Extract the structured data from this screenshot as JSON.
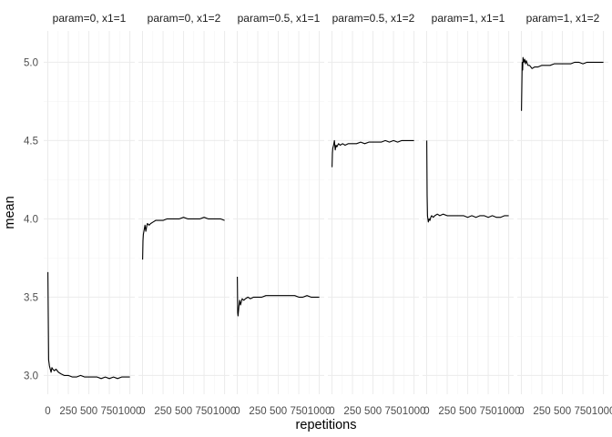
{
  "chart_data": {
    "type": "line",
    "xlabel": "repetitions",
    "ylabel": "mean",
    "ylim": [
      2.88,
      5.2
    ],
    "xlim": [
      -50,
      1060
    ],
    "yticks": [
      3.0,
      3.5,
      4.0,
      4.5,
      5.0
    ],
    "ytick_labels": [
      "3.0",
      "3.5",
      "4.0",
      "4.5",
      "5.0"
    ],
    "xticks": [
      0,
      250,
      500,
      750,
      1000
    ],
    "xtick_labels": [
      "0",
      "250",
      "500",
      "750",
      "1000"
    ],
    "grid": true,
    "colors": {
      "line": "#000000",
      "grid": "#ebebeb",
      "background": "#ffffff"
    },
    "facets": [
      {
        "title": "param=0, x1=1",
        "x": [
          1,
          10,
          20,
          30,
          40,
          50,
          60,
          80,
          100,
          130,
          160,
          200,
          250,
          300,
          350,
          400,
          450,
          500,
          550,
          600,
          650,
          700,
          750,
          800,
          850,
          900,
          950,
          1000
        ],
        "y": [
          3.66,
          3.1,
          3.06,
          3.04,
          3.02,
          3.05,
          3.04,
          3.03,
          3.04,
          3.02,
          3.01,
          3.0,
          3.0,
          2.99,
          2.99,
          3.0,
          2.99,
          2.99,
          2.99,
          2.99,
          2.98,
          2.99,
          2.98,
          2.99,
          2.98,
          2.99,
          2.99,
          2.99
        ]
      },
      {
        "title": "param=0, x1=2",
        "x": [
          1,
          5,
          10,
          20,
          30,
          40,
          50,
          60,
          80,
          100,
          130,
          160,
          200,
          250,
          300,
          350,
          400,
          450,
          500,
          550,
          600,
          650,
          700,
          750,
          800,
          850,
          900,
          950,
          1000
        ],
        "y": [
          3.74,
          3.86,
          3.9,
          3.93,
          3.96,
          3.92,
          3.95,
          3.97,
          3.96,
          3.97,
          3.98,
          3.99,
          3.99,
          3.99,
          4.0,
          4.0,
          4.0,
          4.0,
          4.01,
          4.0,
          4.0,
          4.0,
          4.0,
          4.01,
          4.0,
          4.0,
          4.0,
          4.0,
          3.99
        ]
      },
      {
        "title": "param=0.5, x1=1",
        "x": [
          1,
          5,
          10,
          20,
          30,
          40,
          50,
          60,
          80,
          100,
          130,
          160,
          200,
          250,
          300,
          350,
          400,
          450,
          500,
          550,
          600,
          650,
          700,
          750,
          800,
          850,
          900,
          950,
          1000
        ],
        "y": [
          3.63,
          3.4,
          3.38,
          3.44,
          3.48,
          3.45,
          3.47,
          3.49,
          3.48,
          3.49,
          3.5,
          3.49,
          3.5,
          3.5,
          3.5,
          3.51,
          3.51,
          3.51,
          3.51,
          3.51,
          3.51,
          3.51,
          3.51,
          3.5,
          3.5,
          3.51,
          3.5,
          3.5,
          3.5
        ]
      },
      {
        "title": "param=0.5, x1=2",
        "x": [
          1,
          5,
          10,
          20,
          30,
          40,
          50,
          60,
          80,
          100,
          130,
          160,
          200,
          250,
          300,
          350,
          400,
          450,
          500,
          550,
          600,
          650,
          700,
          750,
          800,
          850,
          900,
          950,
          1000
        ],
        "y": [
          4.33,
          4.42,
          4.45,
          4.47,
          4.5,
          4.44,
          4.47,
          4.46,
          4.48,
          4.47,
          4.48,
          4.47,
          4.48,
          4.48,
          4.48,
          4.49,
          4.48,
          4.49,
          4.49,
          4.49,
          4.49,
          4.5,
          4.49,
          4.5,
          4.49,
          4.5,
          4.5,
          4.5,
          4.5
        ]
      },
      {
        "title": "param=1, x1=1",
        "x": [
          1,
          5,
          10,
          20,
          30,
          40,
          50,
          60,
          80,
          100,
          130,
          160,
          200,
          250,
          300,
          350,
          400,
          450,
          500,
          550,
          600,
          650,
          700,
          750,
          800,
          850,
          900,
          950,
          1000
        ],
        "y": [
          4.5,
          4.15,
          4.02,
          3.98,
          4.0,
          3.99,
          4.01,
          4.02,
          4.01,
          4.02,
          4.03,
          4.02,
          4.03,
          4.02,
          4.02,
          4.02,
          4.02,
          4.02,
          4.01,
          4.02,
          4.01,
          4.02,
          4.02,
          4.01,
          4.02,
          4.01,
          4.01,
          4.02,
          4.02
        ]
      },
      {
        "title": "param=1, x1=2",
        "x": [
          1,
          5,
          10,
          15,
          20,
          30,
          40,
          50,
          60,
          80,
          100,
          130,
          160,
          200,
          250,
          300,
          350,
          400,
          450,
          500,
          550,
          600,
          650,
          700,
          750,
          800,
          850,
          900,
          950,
          1000
        ],
        "y": [
          4.69,
          4.85,
          5.0,
          4.95,
          5.03,
          5.0,
          5.02,
          4.99,
          5.01,
          4.98,
          4.98,
          4.96,
          4.97,
          4.97,
          4.98,
          4.98,
          4.98,
          4.99,
          4.99,
          4.99,
          4.99,
          4.99,
          5.0,
          5.0,
          4.99,
          5.0,
          5.0,
          5.0,
          5.0,
          5.0
        ]
      }
    ]
  }
}
